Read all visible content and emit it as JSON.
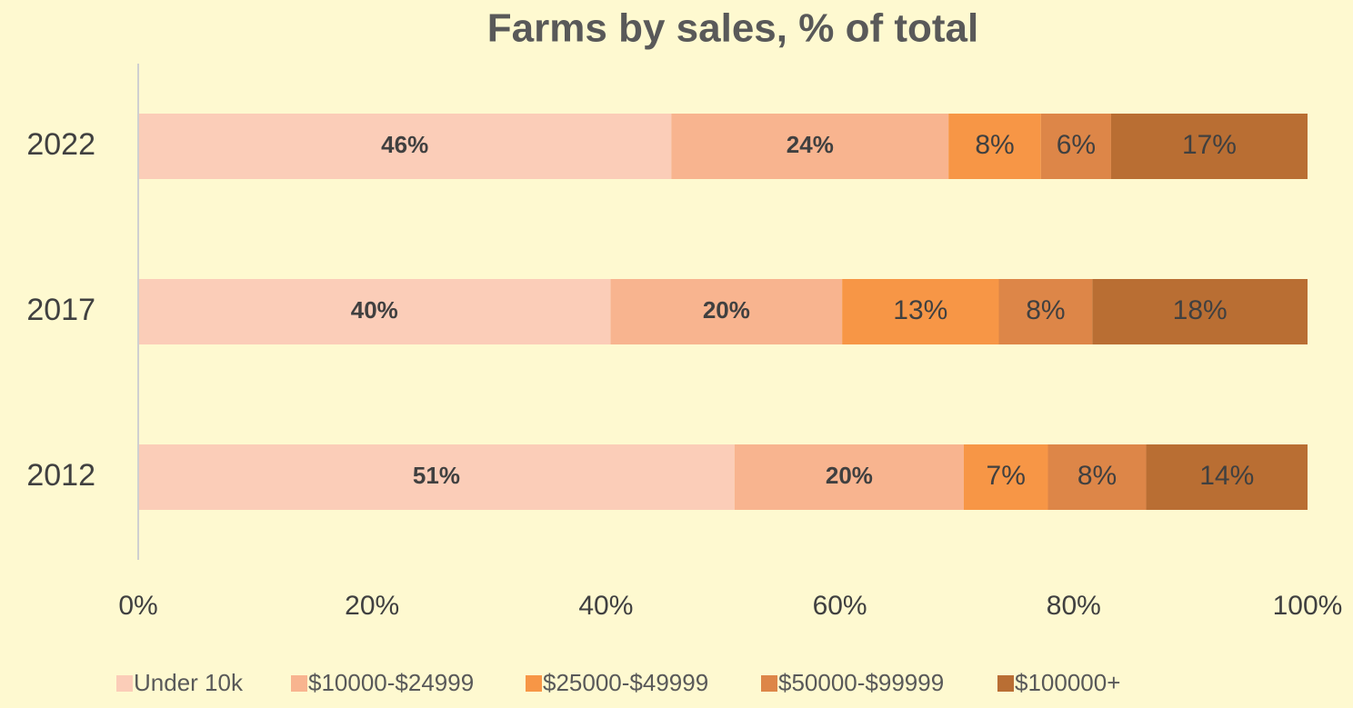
{
  "chart_data": {
    "type": "bar",
    "orientation": "horizontal",
    "stacked": true,
    "title": "Farms by sales, % of total",
    "categories": [
      "2022",
      "2017",
      "2012"
    ],
    "series": [
      {
        "name": "Under 10k",
        "color": "#fbcdb8",
        "values": [
          45.6,
          40.4,
          51.0
        ],
        "value_labels": [
          "46%",
          "40%",
          "51%"
        ]
      },
      {
        "name": "$10000-$24999",
        "color": "#f8b48f",
        "values": [
          23.7,
          19.8,
          19.6
        ],
        "value_labels": [
          "24%",
          "20%",
          "20%"
        ]
      },
      {
        "name": "$25000-$49999",
        "color": "#f79646",
        "values": [
          7.9,
          13.4,
          7.2
        ],
        "value_labels": [
          "8%",
          "13%",
          "7%"
        ]
      },
      {
        "name": "$50000-$99999",
        "color": "#dd8648",
        "values": [
          6.0,
          8.0,
          8.4
        ],
        "value_labels": [
          "6%",
          "8%",
          "8%"
        ]
      },
      {
        "name": "$100000+",
        "color": "#b96e33",
        "values": [
          16.8,
          18.4,
          13.8
        ],
        "value_labels": [
          "17%",
          "18%",
          "14%"
        ]
      }
    ],
    "xlim": [
      0,
      100
    ],
    "xticks": [
      {
        "value": 0,
        "label": "0%"
      },
      {
        "value": 20,
        "label": "20%"
      },
      {
        "value": 40,
        "label": "40%"
      },
      {
        "value": 60,
        "label": "60%"
      },
      {
        "value": 80,
        "label": "80%"
      },
      {
        "value": 100,
        "label": "100%"
      }
    ],
    "grid": false,
    "legend": "bottom"
  }
}
